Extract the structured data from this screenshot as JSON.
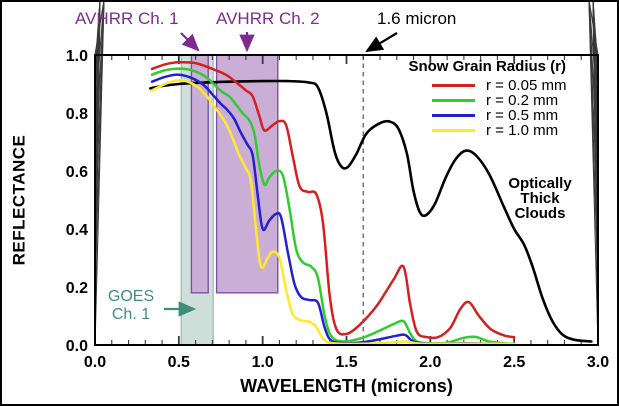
{
  "colors": {
    "avhrr_purple": "#7d2b8f",
    "goes_teal": "#3e8e7e",
    "band_purple_fill": "#cbaed6",
    "band_purple_stroke": "#7b52a5",
    "band_teal_fill": "#cfe0da",
    "band_teal_stroke": "#a3c1b9",
    "dashed_line": "#7a7a7a",
    "red": "#d42020",
    "green": "#2fcc2f",
    "blue": "#2222cc",
    "yellow": "#ffe929",
    "black": "#000000"
  },
  "annotations": {
    "avhrr1": "AVHRR Ch. 1",
    "avhrr2": "AVHRR Ch. 2",
    "micron": "1.6 micron",
    "clouds_line1": "Optically",
    "clouds_line2": "Thick",
    "clouds_line3": "Clouds",
    "goes_line1": "GOES",
    "goes_line2": "Ch. 1"
  },
  "legend": {
    "title": "Snow Grain Radius (r)",
    "items": [
      {
        "label": "r = 0.05 mm",
        "color": "#d42020"
      },
      {
        "label": "r = 0.2 mm",
        "color": "#2fcc2f"
      },
      {
        "label": "r = 0.5 mm",
        "color": "#2222cc"
      },
      {
        "label": "r = 1.0 mm",
        "color": "#ffe929"
      }
    ]
  },
  "chart_data": {
    "type": "line",
    "title": "",
    "xlabel": "WAVELENGTH (microns)",
    "ylabel": "REFLECTANCE",
    "xlim": [
      0,
      3
    ],
    "ylim": [
      0,
      1
    ],
    "grid": false,
    "legend_position": "upper right inside",
    "x_ticks": {
      "values": [
        0,
        0.5,
        1.0,
        1.5,
        2.0,
        2.5,
        3.0
      ],
      "labels": [
        "0.0",
        "0.5",
        "1.0",
        "1.5",
        "2.0",
        "2.5",
        "3.0"
      ],
      "minor_step": 0.1
    },
    "y_ticks": {
      "values": [
        0,
        0.2,
        0.4,
        0.6,
        0.8,
        1.0
      ],
      "labels": [
        "0.0",
        "0.2",
        "0.4",
        "0.6",
        "0.8",
        "1.0"
      ],
      "minor_step": 0.05
    },
    "vline": {
      "x": 1.6,
      "style": "dashed",
      "color": "#7a7a7a",
      "label": "1.6 micron"
    },
    "bands": [
      {
        "key": "goes-ch1",
        "name": "GOES Ch. 1",
        "x": [
          0.515,
          0.705
        ],
        "y": [
          0,
          1
        ],
        "fill": "#cfe0da",
        "stroke": "#a3c1b9"
      },
      {
        "key": "avhrr-ch1",
        "name": "AVHRR Ch. 1",
        "x": [
          0.575,
          0.675
        ],
        "y": [
          0.18,
          1
        ],
        "fill": "#cbaed6",
        "stroke": "#7b52a5"
      },
      {
        "key": "avhrr-ch2",
        "name": "AVHRR Ch. 2",
        "x": [
          0.725,
          1.09
        ],
        "y": [
          0.18,
          1
        ],
        "fill": "#cbaed6",
        "stroke": "#7b52a5"
      }
    ],
    "series": [
      {
        "key": "clouds",
        "name": "Optically Thick Clouds",
        "color": "#000000",
        "width": 2.6,
        "points": [
          [
            0.33,
            0.885
          ],
          [
            0.4,
            0.893
          ],
          [
            0.5,
            0.9
          ],
          [
            0.65,
            0.905
          ],
          [
            0.8,
            0.908
          ],
          [
            1.0,
            0.91
          ],
          [
            1.15,
            0.91
          ],
          [
            1.28,
            0.905
          ],
          [
            1.33,
            0.888
          ],
          [
            1.38,
            0.8
          ],
          [
            1.43,
            0.665
          ],
          [
            1.47,
            0.615
          ],
          [
            1.51,
            0.615
          ],
          [
            1.56,
            0.66
          ],
          [
            1.62,
            0.73
          ],
          [
            1.7,
            0.765
          ],
          [
            1.76,
            0.77
          ],
          [
            1.81,
            0.745
          ],
          [
            1.86,
            0.66
          ],
          [
            1.9,
            0.53
          ],
          [
            1.94,
            0.455
          ],
          [
            1.98,
            0.45
          ],
          [
            2.03,
            0.49
          ],
          [
            2.09,
            0.575
          ],
          [
            2.15,
            0.64
          ],
          [
            2.21,
            0.67
          ],
          [
            2.27,
            0.655
          ],
          [
            2.35,
            0.59
          ],
          [
            2.44,
            0.475
          ],
          [
            2.5,
            0.4
          ],
          [
            2.56,
            0.345
          ],
          [
            2.61,
            0.27
          ],
          [
            2.67,
            0.16
          ],
          [
            2.73,
            0.08
          ],
          [
            2.79,
            0.035
          ],
          [
            2.86,
            0.018
          ],
          [
            2.96,
            0.012
          ]
        ]
      },
      {
        "key": "r005",
        "name": "r = 0.05 mm",
        "color": "#d42020",
        "width": 2.5,
        "points": [
          [
            0.34,
            0.952
          ],
          [
            0.42,
            0.968
          ],
          [
            0.5,
            0.975
          ],
          [
            0.6,
            0.972
          ],
          [
            0.7,
            0.952
          ],
          [
            0.78,
            0.932
          ],
          [
            0.84,
            0.907
          ],
          [
            0.9,
            0.878
          ],
          [
            0.94,
            0.858
          ],
          [
            0.98,
            0.79
          ],
          [
            1.01,
            0.74
          ],
          [
            1.06,
            0.758
          ],
          [
            1.1,
            0.772
          ],
          [
            1.14,
            0.758
          ],
          [
            1.18,
            0.65
          ],
          [
            1.22,
            0.547
          ],
          [
            1.27,
            0.528
          ],
          [
            1.32,
            0.52
          ],
          [
            1.36,
            0.42
          ],
          [
            1.4,
            0.17
          ],
          [
            1.44,
            0.055
          ],
          [
            1.5,
            0.038
          ],
          [
            1.58,
            0.07
          ],
          [
            1.68,
            0.135
          ],
          [
            1.78,
            0.225
          ],
          [
            1.84,
            0.27
          ],
          [
            1.88,
            0.14
          ],
          [
            1.92,
            0.045
          ],
          [
            1.98,
            0.027
          ],
          [
            2.05,
            0.028
          ],
          [
            2.12,
            0.06
          ],
          [
            2.18,
            0.125
          ],
          [
            2.23,
            0.148
          ],
          [
            2.29,
            0.1
          ],
          [
            2.36,
            0.055
          ],
          [
            2.44,
            0.033
          ],
          [
            2.5,
            0.027
          ]
        ]
      },
      {
        "key": "r02",
        "name": "r = 0.2 mm",
        "color": "#2fcc2f",
        "width": 2.5,
        "points": [
          [
            0.34,
            0.932
          ],
          [
            0.42,
            0.948
          ],
          [
            0.5,
            0.953
          ],
          [
            0.58,
            0.947
          ],
          [
            0.66,
            0.925
          ],
          [
            0.72,
            0.893
          ],
          [
            0.76,
            0.872
          ],
          [
            0.8,
            0.858
          ],
          [
            0.84,
            0.83
          ],
          [
            0.88,
            0.8
          ],
          [
            0.92,
            0.775
          ],
          [
            0.95,
            0.73
          ],
          [
            0.98,
            0.62
          ],
          [
            1.01,
            0.553
          ],
          [
            1.04,
            0.578
          ],
          [
            1.08,
            0.6
          ],
          [
            1.12,
            0.585
          ],
          [
            1.16,
            0.47
          ],
          [
            1.2,
            0.33
          ],
          [
            1.24,
            0.285
          ],
          [
            1.29,
            0.27
          ],
          [
            1.33,
            0.23
          ],
          [
            1.37,
            0.1
          ],
          [
            1.41,
            0.03
          ],
          [
            1.48,
            0.012
          ],
          [
            1.58,
            0.022
          ],
          [
            1.68,
            0.045
          ],
          [
            1.78,
            0.072
          ],
          [
            1.84,
            0.082
          ],
          [
            1.88,
            0.04
          ],
          [
            1.92,
            0.012
          ],
          [
            2.0,
            0.006
          ],
          [
            2.1,
            0.008
          ],
          [
            2.2,
            0.025
          ],
          [
            2.27,
            0.028
          ],
          [
            2.35,
            0.012
          ],
          [
            2.45,
            0.006
          ],
          [
            2.5,
            0.005
          ]
        ]
      },
      {
        "key": "r05",
        "name": "r = 0.5 mm",
        "color": "#2222cc",
        "width": 2.5,
        "points": [
          [
            0.34,
            0.908
          ],
          [
            0.42,
            0.925
          ],
          [
            0.5,
            0.932
          ],
          [
            0.58,
            0.92
          ],
          [
            0.65,
            0.895
          ],
          [
            0.71,
            0.858
          ],
          [
            0.75,
            0.832
          ],
          [
            0.79,
            0.81
          ],
          [
            0.83,
            0.78
          ],
          [
            0.87,
            0.732
          ],
          [
            0.91,
            0.69
          ],
          [
            0.94,
            0.655
          ],
          [
            0.97,
            0.52
          ],
          [
            1.0,
            0.4
          ],
          [
            1.04,
            0.43
          ],
          [
            1.08,
            0.452
          ],
          [
            1.11,
            0.44
          ],
          [
            1.15,
            0.32
          ],
          [
            1.19,
            0.21
          ],
          [
            1.23,
            0.165
          ],
          [
            1.28,
            0.155
          ],
          [
            1.33,
            0.145
          ],
          [
            1.37,
            0.06
          ],
          [
            1.41,
            0.015
          ],
          [
            1.5,
            0.006
          ],
          [
            1.6,
            0.01
          ],
          [
            1.7,
            0.02
          ],
          [
            1.8,
            0.032
          ],
          [
            1.85,
            0.035
          ],
          [
            1.9,
            0.012
          ],
          [
            2.0,
            0.004
          ],
          [
            2.2,
            0.006
          ],
          [
            2.35,
            0.005
          ],
          [
            2.5,
            0.004
          ]
        ]
      },
      {
        "key": "r10",
        "name": "r = 1.0 mm",
        "color": "#ffe929",
        "width": 2.5,
        "points": [
          [
            0.34,
            0.878
          ],
          [
            0.44,
            0.905
          ],
          [
            0.52,
            0.912
          ],
          [
            0.6,
            0.895
          ],
          [
            0.66,
            0.862
          ],
          [
            0.7,
            0.832
          ],
          [
            0.74,
            0.8
          ],
          [
            0.78,
            0.765
          ],
          [
            0.82,
            0.715
          ],
          [
            0.86,
            0.655
          ],
          [
            0.9,
            0.61
          ],
          [
            0.93,
            0.565
          ],
          [
            0.96,
            0.4
          ],
          [
            0.99,
            0.27
          ],
          [
            1.03,
            0.3
          ],
          [
            1.06,
            0.322
          ],
          [
            1.1,
            0.3
          ],
          [
            1.14,
            0.19
          ],
          [
            1.18,
            0.105
          ],
          [
            1.23,
            0.085
          ],
          [
            1.28,
            0.08
          ],
          [
            1.32,
            0.062
          ],
          [
            1.36,
            0.022
          ],
          [
            1.42,
            0.006
          ],
          [
            1.6,
            0.004
          ],
          [
            1.8,
            0.01
          ],
          [
            1.86,
            0.012
          ],
          [
            1.95,
            0.004
          ],
          [
            2.2,
            0.005
          ],
          [
            2.5,
            0.004
          ]
        ]
      }
    ]
  }
}
